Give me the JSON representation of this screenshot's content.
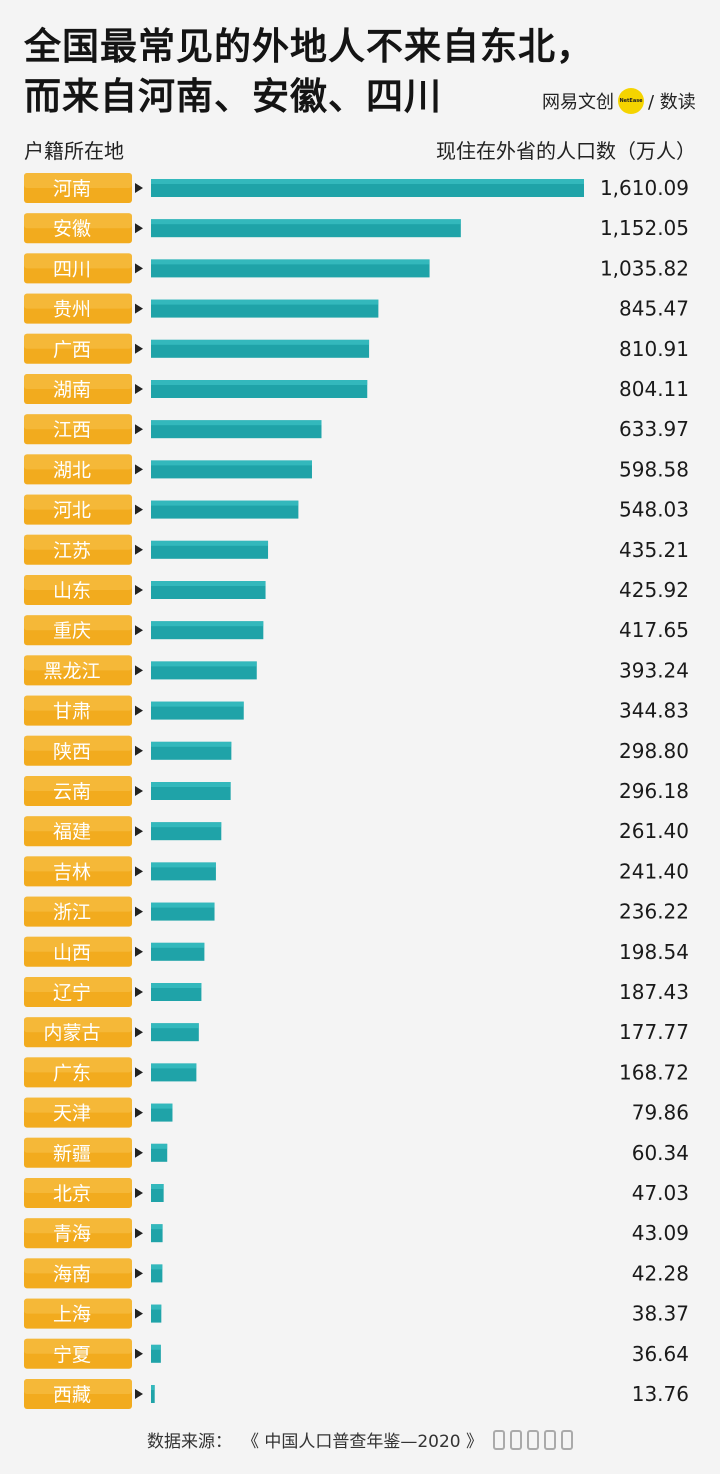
{
  "title_lines": [
    "全国最常见的外地人不来自东北，",
    "而来自河南、安徽、四川"
  ],
  "brand": {
    "name": "网易文创",
    "logo_text": "NetEase",
    "suffix": "/ 数读"
  },
  "header": {
    "left": "户籍所在地",
    "right": "现住在外省的人口数（万人）"
  },
  "colors": {
    "label_bg": "#f2ab1e",
    "label_bg_light": "#f7c24e",
    "label_text": "#ffffff",
    "bar": "#1fa3a8",
    "bar_top": "#3cc0c4",
    "value_text": "#1a1a1a"
  },
  "chart_data": {
    "type": "bar",
    "orientation": "horizontal",
    "categories": [
      "河南",
      "安徽",
      "四川",
      "贵州",
      "广西",
      "湖南",
      "江西",
      "湖北",
      "河北",
      "江苏",
      "山东",
      "重庆",
      "黑龙江",
      "甘肃",
      "陕西",
      "云南",
      "福建",
      "吉林",
      "浙江",
      "山西",
      "辽宁",
      "内蒙古",
      "广东",
      "天津",
      "新疆",
      "北京",
      "青海",
      "海南",
      "上海",
      "宁夏",
      "西藏"
    ],
    "values": [
      1610.09,
      1152.05,
      1035.82,
      845.47,
      810.91,
      804.11,
      633.97,
      598.58,
      548.03,
      435.21,
      425.92,
      417.65,
      393.24,
      344.83,
      298.8,
      296.18,
      261.4,
      241.4,
      236.22,
      198.54,
      187.43,
      177.77,
      168.72,
      79.86,
      60.34,
      47.03,
      43.09,
      42.28,
      38.37,
      36.64,
      13.76
    ],
    "value_labels": [
      "1,610.09",
      "1,152.05",
      "1,035.82",
      "845.47",
      "810.91",
      "804.11",
      "633.97",
      "598.58",
      "548.03",
      "435.21",
      "425.92",
      "417.65",
      "393.24",
      "344.83",
      "298.80",
      "296.18",
      "261.40",
      "241.40",
      "236.22",
      "198.54",
      "187.43",
      "177.77",
      "168.72",
      "79.86",
      "60.34",
      "47.03",
      "43.09",
      "42.28",
      "38.37",
      "36.64",
      "13.76"
    ],
    "xlabel": "户籍所在地",
    "ylabel": "现住在外省的人口数（万人）",
    "grid": false,
    "legend": "none"
  },
  "footer": {
    "source_label": "数据来源：",
    "source_value": "《 中国人口普查年鉴—2020 》"
  }
}
